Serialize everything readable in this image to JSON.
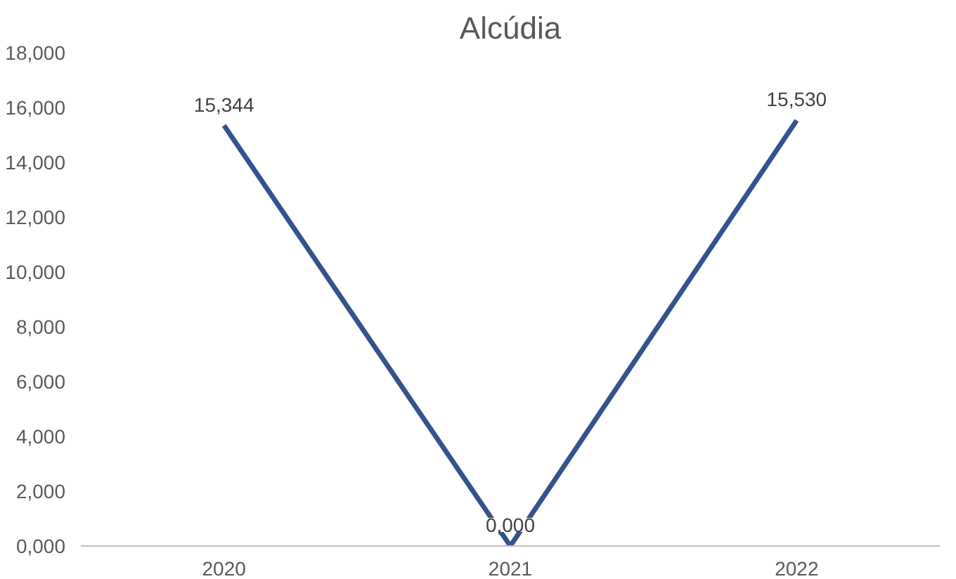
{
  "chart_data": {
    "type": "line",
    "title": "Alcúdia",
    "categories": [
      "2020",
      "2021",
      "2022"
    ],
    "series": [
      {
        "color": "#34538c",
        "values": [
          15.344,
          0,
          15.53
        ],
        "value_labels": [
          "15,344",
          "0,000",
          "15,530"
        ]
      }
    ],
    "ylim": [
      0,
      18
    ],
    "yticks": [
      {
        "value": 0,
        "label": "0,000"
      },
      {
        "value": 2,
        "label": "2,000"
      },
      {
        "value": 4,
        "label": "4,000"
      },
      {
        "value": 6,
        "label": "6,000"
      },
      {
        "value": 8,
        "label": "8,000"
      },
      {
        "value": 10,
        "label": "10,000"
      },
      {
        "value": 12,
        "label": "12,000"
      },
      {
        "value": 14,
        "label": "14,000"
      },
      {
        "value": 16,
        "label": "16,000"
      },
      {
        "value": 18,
        "label": "18,000"
      }
    ],
    "grid": false,
    "marker": "none",
    "line_style": "solid"
  }
}
